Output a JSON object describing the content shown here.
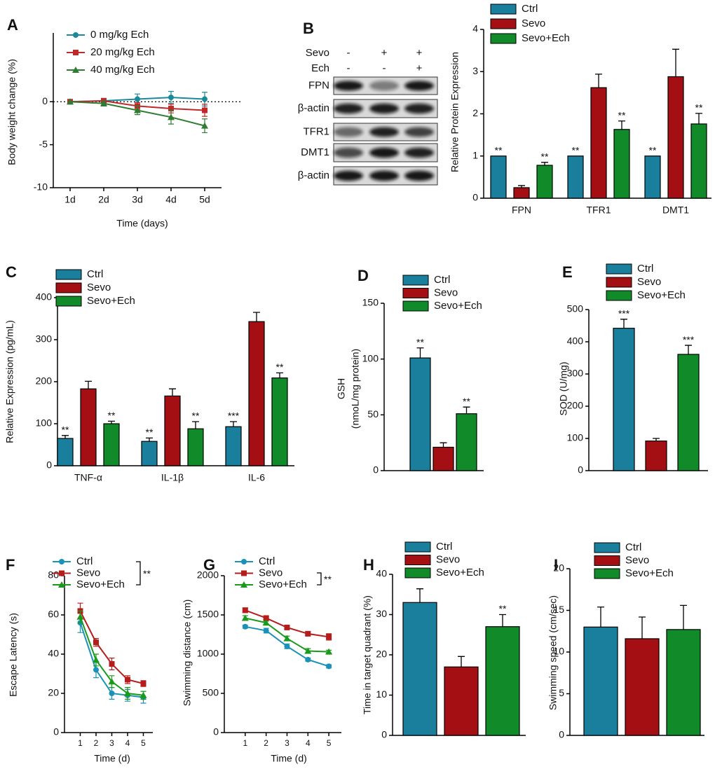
{
  "chart_data": [
    {
      "label": "A",
      "type": "line",
      "ylabel": "Body weight change (%)",
      "xlabel": "Time (days)",
      "categories": [
        "1d",
        "2d",
        "3d",
        "4d",
        "5d"
      ],
      "ylim": [
        -10,
        8
      ],
      "yticks": [
        -10,
        -5,
        0
      ],
      "reference_line": 0,
      "series": [
        {
          "name": "0 mg/kg Ech",
          "color": "#1a8a9a",
          "marker": "circle",
          "values": [
            0,
            0.1,
            0.3,
            0.5,
            0.3
          ],
          "errors": [
            0,
            0.3,
            0.6,
            0.7,
            0.8
          ]
        },
        {
          "name": "20 mg/kg Ech",
          "color": "#c0282c",
          "marker": "square",
          "values": [
            0,
            0.1,
            -0.5,
            -0.8,
            -1.0
          ],
          "errors": [
            0,
            0.2,
            0.4,
            0.5,
            0.7
          ]
        },
        {
          "name": "40 mg/kg Ech",
          "color": "#2e7d32",
          "marker": "triangle",
          "values": [
            0,
            -0.2,
            -1.0,
            -1.8,
            -2.8
          ],
          "errors": [
            0,
            0.3,
            0.5,
            0.8,
            0.8
          ]
        }
      ]
    },
    {
      "label": "B",
      "type": "bar",
      "ylabel": "Relative Protein Expression",
      "categories": [
        "FPN",
        "TFR1",
        "DMT1"
      ],
      "ylim": [
        0,
        4
      ],
      "yticks": [
        0,
        1,
        2,
        3,
        4
      ],
      "series": [
        {
          "name": "Ctrl",
          "color": "#1a7f9c",
          "values": [
            1,
            1,
            1
          ],
          "annotations": [
            "**",
            "**",
            "**"
          ]
        },
        {
          "name": "Sevo",
          "color": "#a40f13",
          "values": [
            0.25,
            2.62,
            2.88
          ],
          "errors": [
            0.05,
            0.32,
            0.65
          ]
        },
        {
          "name": "Sevo+Ech",
          "color": "#118a2a",
          "values": [
            0.78,
            1.63,
            1.76
          ],
          "errors": [
            0.07,
            0.2,
            0.25
          ],
          "annotations": [
            "**",
            "**",
            "**"
          ]
        }
      ]
    },
    {
      "label": "C",
      "type": "bar",
      "ylabel": "Relative Expression (pg/mL)",
      "categories": [
        "TNF-α",
        "IL-1β",
        "IL-6"
      ],
      "ylim": [
        0,
        400
      ],
      "yticks": [
        0,
        100,
        200,
        300,
        400
      ],
      "series": [
        {
          "name": "Ctrl",
          "color": "#1a7f9c",
          "values": [
            65,
            58,
            93
          ],
          "errors": [
            7,
            8,
            12
          ],
          "annotations": [
            "**",
            "**",
            "***"
          ]
        },
        {
          "name": "Sevo",
          "color": "#a40f13",
          "values": [
            183,
            166,
            343
          ],
          "errors": [
            18,
            17,
            22
          ]
        },
        {
          "name": "Sevo+Ech",
          "color": "#118a2a",
          "values": [
            100,
            88,
            209
          ],
          "errors": [
            6,
            17,
            12
          ],
          "annotations": [
            "**",
            "**",
            "**"
          ]
        }
      ]
    },
    {
      "label": "D",
      "type": "bar",
      "ylabel": [
        "GSH",
        "(nmoL/mg protein)"
      ],
      "categories": [
        null
      ],
      "ylim": [
        0,
        150
      ],
      "yticks": [
        0,
        50,
        100,
        150
      ],
      "series": [
        {
          "name": "Ctrl",
          "color": "#1a7f9c",
          "values": [
            101
          ],
          "errors": [
            9
          ],
          "annotations": [
            "**"
          ]
        },
        {
          "name": "Sevo",
          "color": "#a40f13",
          "values": [
            21
          ],
          "errors": [
            4
          ]
        },
        {
          "name": "Sevo+Ech",
          "color": "#118a2a",
          "values": [
            51
          ],
          "errors": [
            6
          ],
          "annotations": [
            "**"
          ]
        }
      ]
    },
    {
      "label": "E",
      "type": "bar",
      "ylabel": "SOD (U/mg)",
      "categories": [
        null
      ],
      "ylim": [
        0,
        500
      ],
      "yticks": [
        0,
        100,
        200,
        300,
        400,
        500
      ],
      "series": [
        {
          "name": "Ctrl",
          "color": "#1a7f9c",
          "values": [
            442
          ],
          "errors": [
            28
          ],
          "annotations": [
            "***"
          ]
        },
        {
          "name": "Sevo",
          "color": "#a40f13",
          "values": [
            92
          ],
          "errors": [
            8
          ]
        },
        {
          "name": "Sevo+Ech",
          "color": "#118a2a",
          "values": [
            361
          ],
          "errors": [
            28
          ],
          "annotations": [
            "***"
          ]
        }
      ]
    },
    {
      "label": "F",
      "type": "line",
      "ylabel": "Escape Latency (s)",
      "xlabel": "Time (d)",
      "annotation": "**",
      "x": [
        1,
        2,
        3,
        4,
        5
      ],
      "xlim": [
        0,
        5.6
      ],
      "xticks": [
        1,
        2,
        3,
        4,
        5
      ],
      "ylim": [
        0,
        80
      ],
      "yticks": [
        0,
        20,
        40,
        60,
        80
      ],
      "series": [
        {
          "name": "Ctrl",
          "color": "#1a92b8",
          "marker": "circle",
          "values": [
            56,
            32,
            20,
            19,
            18
          ],
          "errors": [
            5,
            4,
            3,
            3,
            3
          ]
        },
        {
          "name": "Sevo",
          "color": "#b71c1c",
          "marker": "square",
          "values": [
            62,
            46,
            35,
            27,
            25
          ],
          "errors": [
            4,
            2,
            3,
            2,
            1.5
          ]
        },
        {
          "name": "Sevo+Ech",
          "color": "#1a9a1a",
          "marker": "triangle",
          "values": [
            59,
            37,
            26,
            20,
            19
          ],
          "errors": [
            3,
            3,
            3,
            3,
            2
          ]
        }
      ]
    },
    {
      "label": "G",
      "type": "line",
      "ylabel": "Swimming distance (cm)",
      "xlabel": "Time (d)",
      "annotation": "**",
      "x": [
        1,
        2,
        3,
        4,
        5
      ],
      "xlim": [
        0,
        5.6
      ],
      "xticks": [
        1,
        2,
        3,
        4,
        5
      ],
      "ylim": [
        0,
        2000
      ],
      "yticks": [
        0,
        500,
        1000,
        1500,
        2000
      ],
      "series": [
        {
          "name": "Ctrl",
          "color": "#1a92b8",
          "marker": "circle",
          "values": [
            1350,
            1300,
            1100,
            930,
            845
          ],
          "errors": [
            20,
            30,
            30,
            20,
            20
          ]
        },
        {
          "name": "Sevo",
          "color": "#b71c1c",
          "marker": "square",
          "values": [
            1560,
            1460,
            1340,
            1260,
            1220
          ],
          "errors": [
            30,
            20,
            20,
            20,
            40
          ]
        },
        {
          "name": "Sevo+Ech",
          "color": "#1a9a1a",
          "marker": "triangle",
          "values": [
            1460,
            1400,
            1200,
            1040,
            1030
          ],
          "errors": [
            30,
            20,
            30,
            30,
            20
          ]
        }
      ]
    },
    {
      "label": "H",
      "type": "bar",
      "ylabel": "Time in target quadrant (%)",
      "categories": [
        null
      ],
      "ylim": [
        0,
        40
      ],
      "yticks": [
        0,
        10,
        20,
        30,
        40
      ],
      "series": [
        {
          "name": "Ctrl",
          "color": "#1a7f9c",
          "values": [
            33
          ],
          "errors": [
            3.4
          ]
        },
        {
          "name": "Sevo",
          "color": "#a40f13",
          "values": [
            17
          ],
          "errors": [
            2.6
          ]
        },
        {
          "name": "Sevo+Ech",
          "color": "#118a2a",
          "values": [
            27
          ],
          "errors": [
            3
          ],
          "annotations": [
            "**"
          ]
        }
      ]
    },
    {
      "label": "I",
      "type": "bar",
      "ylabel": "Swimming speed (cm/sec)",
      "categories": [
        null
      ],
      "ylim": [
        0,
        20
      ],
      "yticks": [
        0,
        5,
        10,
        15,
        20
      ],
      "series": [
        {
          "name": "Ctrl",
          "color": "#1a7f9c",
          "values": [
            13
          ],
          "errors": [
            2.4
          ]
        },
        {
          "name": "Sevo",
          "color": "#a40f13",
          "values": [
            11.6
          ],
          "errors": [
            2.6
          ]
        },
        {
          "name": "Sevo+Ech",
          "color": "#118a2a",
          "values": [
            12.7
          ],
          "errors": [
            2.9
          ]
        }
      ]
    }
  ],
  "blot": {
    "treatments": [
      {
        "name": "Sevo",
        "levels": [
          "-",
          "+",
          "+"
        ]
      },
      {
        "name": "Ech",
        "levels": [
          "-",
          "-",
          "+"
        ]
      }
    ],
    "bands": [
      "FPN",
      "β-actin",
      "TFR1",
      "DMT1",
      "β-actin"
    ]
  }
}
